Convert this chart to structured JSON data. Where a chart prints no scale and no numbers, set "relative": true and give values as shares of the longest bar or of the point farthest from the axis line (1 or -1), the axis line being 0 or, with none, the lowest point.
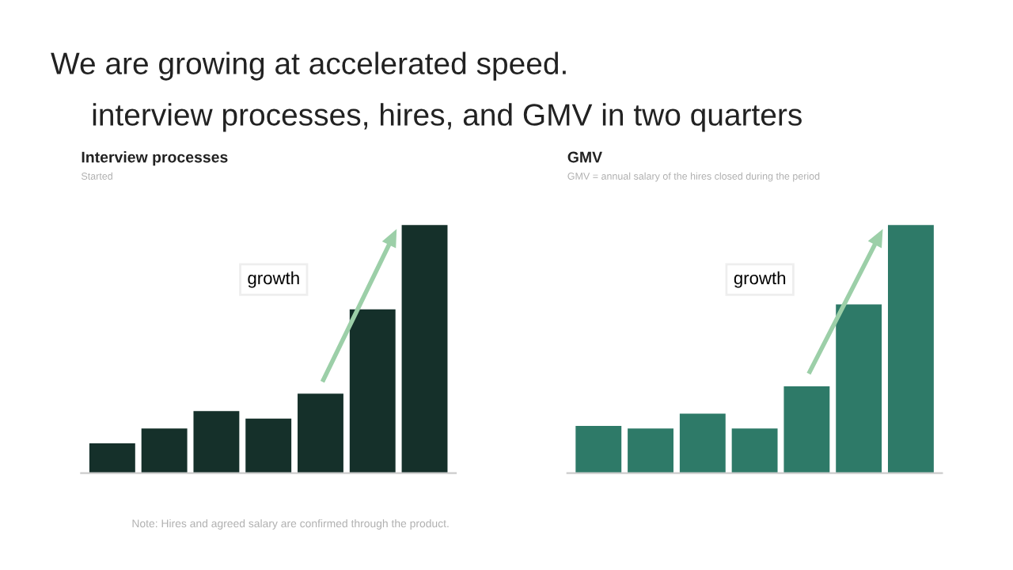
{
  "chart_data": [
    {
      "type": "bar",
      "title": "Interview processes",
      "subtitle": "Started",
      "categories": [
        null,
        null,
        null,
        null,
        null,
        null,
        null
      ],
      "relative": true,
      "series": [
        {
          "color": "#15302a",
          "values": [
            0.12,
            0.18,
            0.25,
            0.22,
            0.32,
            0.66,
            1
          ]
        }
      ],
      "annotations": [
        "We are growing at accelerated speed.",
        "interview processes, hires, and GMV in two quarters",
        "growth",
        "Note: Hires and agreed salary are confirmed through the product."
      ],
      "grid": false,
      "legend": false,
      "tick_labels": false
    },
    {
      "type": "bar",
      "title": "GMV",
      "subtitle": "GMV = annual salary of the hires closed during the period",
      "categories": [
        null,
        null,
        null,
        null,
        null,
        null,
        null
      ],
      "relative": true,
      "series": [
        {
          "color": "#2e7a68",
          "values": [
            0.19,
            0.18,
            0.24,
            0.18,
            0.35,
            0.68,
            1
          ]
        }
      ],
      "annotations": [
        "growth"
      ],
      "grid": false,
      "legend": false,
      "tick_labels": false
    }
  ]
}
